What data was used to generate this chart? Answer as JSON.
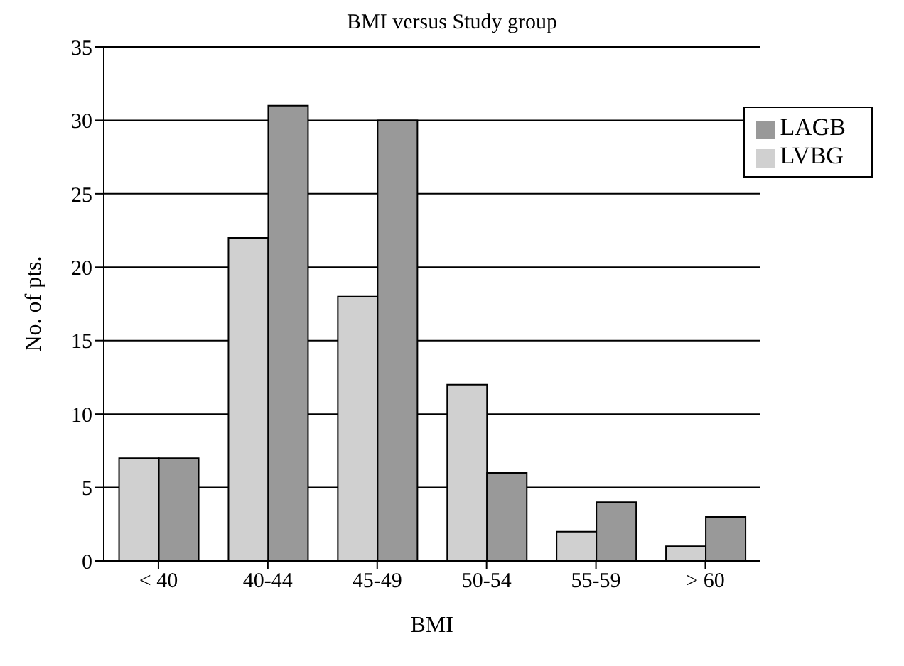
{
  "chart_data": {
    "type": "bar",
    "title": "BMI versus Study group",
    "xlabel": "BMI",
    "ylabel": "No. of pts.",
    "categories": [
      "< 40",
      "40-44",
      "45-49",
      "50-54",
      "55-59",
      "> 60"
    ],
    "series": [
      {
        "name": "LVBG",
        "color": "#d0d0d0",
        "values": [
          7,
          22,
          18,
          12,
          2,
          1
        ]
      },
      {
        "name": "LAGB",
        "color": "#999999",
        "values": [
          7,
          31,
          30,
          6,
          4,
          3
        ]
      }
    ],
    "ylim": [
      0,
      35
    ],
    "yticks": [
      0,
      5,
      10,
      15,
      20,
      25,
      30,
      35
    ],
    "grid": "y",
    "legend": "top right"
  }
}
